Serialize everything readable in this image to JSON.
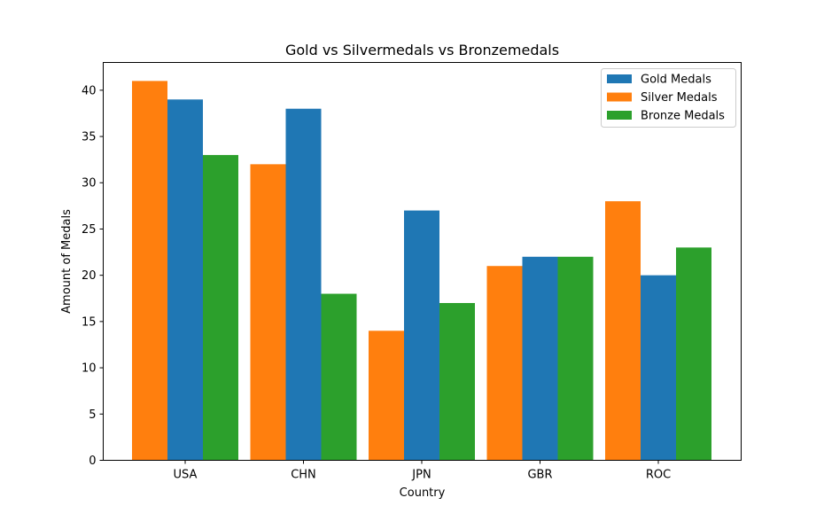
{
  "chart_data": {
    "type": "bar",
    "title": "Gold vs Silvermedals vs Bronzemedals",
    "xlabel": "Country",
    "ylabel": "Amount of Medals",
    "categories": [
      "USA",
      "CHN",
      "JPN",
      "GBR",
      "ROC"
    ],
    "ylim": [
      0,
      43
    ],
    "yticks": [
      0,
      5,
      10,
      15,
      20,
      25,
      30,
      35,
      40
    ],
    "grid": false,
    "legend_position": "upper-right",
    "series": [
      {
        "name": "Gold Medals",
        "color": "#1f77b4",
        "values": [
          39,
          38,
          27,
          22,
          20
        ]
      },
      {
        "name": "Silver Medals",
        "color": "#ff7f0e",
        "values": [
          41,
          32,
          14,
          21,
          28
        ]
      },
      {
        "name": "Bronze Medals",
        "color": "#2ca02c",
        "values": [
          33,
          18,
          17,
          22,
          23
        ]
      }
    ],
    "bar_order": [
      "Silver Medals",
      "Gold Medals",
      "Bronze Medals"
    ]
  }
}
